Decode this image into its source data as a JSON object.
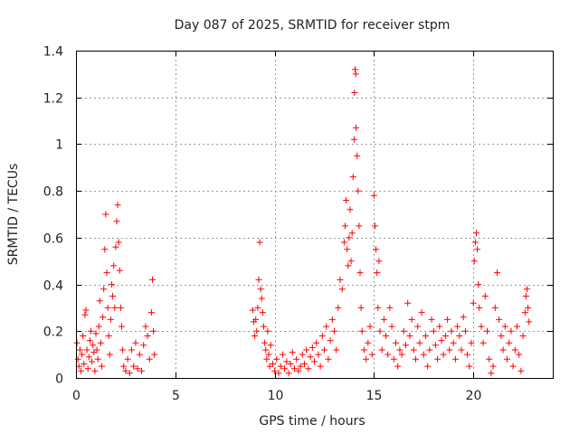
{
  "chart_data": {
    "type": "scatter",
    "title": "Day 087 of 2025, SRMTID for receiver stpm",
    "xlabel": "GPS time / hours",
    "ylabel": "SRMTID / TECUs",
    "xlim": [
      0,
      24
    ],
    "ylim": [
      0,
      1.4
    ],
    "xticks": [
      0,
      5,
      10,
      15,
      20
    ],
    "xtick_labels": [
      "0",
      "5",
      "10",
      "15",
      "20"
    ],
    "yticks": [
      0,
      0.2,
      0.4,
      0.6,
      0.8,
      1.0,
      1.2,
      1.4
    ],
    "ytick_labels": [
      "0",
      "0.2",
      "0.4",
      "0.6",
      "0.8",
      "1",
      "1.2",
      "1.4"
    ],
    "grid": true,
    "marker": "+",
    "color": "#ff0000",
    "series": [
      {
        "name": "SRMTID",
        "points": [
          [
            0.05,
            0.15
          ],
          [
            0.1,
            0.08
          ],
          [
            0.15,
            0.05
          ],
          [
            0.2,
            0.12
          ],
          [
            0.25,
            0.03
          ],
          [
            0.3,
            0.1
          ],
          [
            0.35,
            0.18
          ],
          [
            0.4,
            0.06
          ],
          [
            0.45,
            0.27
          ],
          [
            0.5,
            0.29
          ],
          [
            0.55,
            0.12
          ],
          [
            0.6,
            0.04
          ],
          [
            0.65,
            0.09
          ],
          [
            0.7,
            0.16
          ],
          [
            0.75,
            0.2
          ],
          [
            0.8,
            0.07
          ],
          [
            0.85,
            0.14
          ],
          [
            0.9,
            0.11
          ],
          [
            0.95,
            0.03
          ],
          [
            1.0,
            0.19
          ],
          [
            1.05,
            0.12
          ],
          [
            1.1,
            0.08
          ],
          [
            1.15,
            0.22
          ],
          [
            1.2,
            0.33
          ],
          [
            1.25,
            0.15
          ],
          [
            1.3,
            0.05
          ],
          [
            1.35,
            0.26
          ],
          [
            1.4,
            0.38
          ],
          [
            1.45,
            0.55
          ],
          [
            1.5,
            0.7
          ],
          [
            1.55,
            0.45
          ],
          [
            1.6,
            0.3
          ],
          [
            1.65,
            0.18
          ],
          [
            1.7,
            0.1
          ],
          [
            1.75,
            0.25
          ],
          [
            1.8,
            0.4
          ],
          [
            1.85,
            0.35
          ],
          [
            1.9,
            0.48
          ],
          [
            1.95,
            0.3
          ],
          [
            2.0,
            0.56
          ],
          [
            2.05,
            0.67
          ],
          [
            2.1,
            0.74
          ],
          [
            2.15,
            0.58
          ],
          [
            2.2,
            0.46
          ],
          [
            2.25,
            0.3
          ],
          [
            2.3,
            0.22
          ],
          [
            2.35,
            0.12
          ],
          [
            2.4,
            0.05
          ],
          [
            2.5,
            0.03
          ],
          [
            2.6,
            0.08
          ],
          [
            2.7,
            0.02
          ],
          [
            2.8,
            0.12
          ],
          [
            2.9,
            0.05
          ],
          [
            3.0,
            0.15
          ],
          [
            3.1,
            0.04
          ],
          [
            3.2,
            0.1
          ],
          [
            3.3,
            0.03
          ],
          [
            3.4,
            0.14
          ],
          [
            3.5,
            0.22
          ],
          [
            3.6,
            0.18
          ],
          [
            3.7,
            0.08
          ],
          [
            3.8,
            0.28
          ],
          [
            3.85,
            0.42
          ],
          [
            3.9,
            0.2
          ],
          [
            3.95,
            0.1
          ],
          [
            8.9,
            0.29
          ],
          [
            8.95,
            0.24
          ],
          [
            9.0,
            0.18
          ],
          [
            9.05,
            0.25
          ],
          [
            9.1,
            0.2
          ],
          [
            9.15,
            0.3
          ],
          [
            9.2,
            0.42
          ],
          [
            9.25,
            0.58
          ],
          [
            9.3,
            0.38
          ],
          [
            9.35,
            0.34
          ],
          [
            9.4,
            0.28
          ],
          [
            9.45,
            0.22
          ],
          [
            9.5,
            0.15
          ],
          [
            9.55,
            0.12
          ],
          [
            9.6,
            0.08
          ],
          [
            9.65,
            0.2
          ],
          [
            9.7,
            0.1
          ],
          [
            9.75,
            0.05
          ],
          [
            9.8,
            0.14
          ],
          [
            9.9,
            0.06
          ],
          [
            10.0,
            0.03
          ],
          [
            10.1,
            0.08
          ],
          [
            10.2,
            0.02
          ],
          [
            10.3,
            0.05
          ],
          [
            10.4,
            0.1
          ],
          [
            10.5,
            0.04
          ],
          [
            10.6,
            0.07
          ],
          [
            10.7,
            0.02
          ],
          [
            10.8,
            0.06
          ],
          [
            10.9,
            0.11
          ],
          [
            11.0,
            0.04
          ],
          [
            11.1,
            0.08
          ],
          [
            11.2,
            0.03
          ],
          [
            11.3,
            0.05
          ],
          [
            11.4,
            0.1
          ],
          [
            11.5,
            0.06
          ],
          [
            11.6,
            0.12
          ],
          [
            11.7,
            0.04
          ],
          [
            11.8,
            0.09
          ],
          [
            11.9,
            0.13
          ],
          [
            12.0,
            0.07
          ],
          [
            12.1,
            0.15
          ],
          [
            12.2,
            0.1
          ],
          [
            12.3,
            0.05
          ],
          [
            12.4,
            0.18
          ],
          [
            12.5,
            0.12
          ],
          [
            12.6,
            0.22
          ],
          [
            12.7,
            0.08
          ],
          [
            12.8,
            0.16
          ],
          [
            12.9,
            0.25
          ],
          [
            13.0,
            0.2
          ],
          [
            13.1,
            0.12
          ],
          [
            13.2,
            0.3
          ],
          [
            13.3,
            0.42
          ],
          [
            13.4,
            0.38
          ],
          [
            13.5,
            0.58
          ],
          [
            13.55,
            0.65
          ],
          [
            13.6,
            0.76
          ],
          [
            13.65,
            0.55
          ],
          [
            13.7,
            0.48
          ],
          [
            13.75,
            0.6
          ],
          [
            13.8,
            0.72
          ],
          [
            13.85,
            0.5
          ],
          [
            13.9,
            0.62
          ],
          [
            13.95,
            0.86
          ],
          [
            14.0,
            1.02
          ],
          [
            14.02,
            1.22
          ],
          [
            14.05,
            1.32
          ],
          [
            14.08,
            1.3
          ],
          [
            14.1,
            1.07
          ],
          [
            14.15,
            0.95
          ],
          [
            14.2,
            0.8
          ],
          [
            14.25,
            0.65
          ],
          [
            14.3,
            0.45
          ],
          [
            14.35,
            0.3
          ],
          [
            14.4,
            0.2
          ],
          [
            14.5,
            0.12
          ],
          [
            14.6,
            0.08
          ],
          [
            14.7,
            0.15
          ],
          [
            14.8,
            0.22
          ],
          [
            14.9,
            0.1
          ],
          [
            15.0,
            0.78
          ],
          [
            15.05,
            0.65
          ],
          [
            15.1,
            0.55
          ],
          [
            15.15,
            0.45
          ],
          [
            15.2,
            0.3
          ],
          [
            15.25,
            0.5
          ],
          [
            15.3,
            0.2
          ],
          [
            15.4,
            0.12
          ],
          [
            15.5,
            0.25
          ],
          [
            15.6,
            0.18
          ],
          [
            15.7,
            0.1
          ],
          [
            15.8,
            0.3
          ],
          [
            15.9,
            0.22
          ],
          [
            16.0,
            0.08
          ],
          [
            16.1,
            0.15
          ],
          [
            16.2,
            0.05
          ],
          [
            16.3,
            0.12
          ],
          [
            16.4,
            0.1
          ],
          [
            16.5,
            0.2
          ],
          [
            16.6,
            0.14
          ],
          [
            16.7,
            0.32
          ],
          [
            16.8,
            0.18
          ],
          [
            16.9,
            0.25
          ],
          [
            17.0,
            0.12
          ],
          [
            17.1,
            0.08
          ],
          [
            17.2,
            0.22
          ],
          [
            17.3,
            0.15
          ],
          [
            17.4,
            0.28
          ],
          [
            17.5,
            0.1
          ],
          [
            17.6,
            0.18
          ],
          [
            17.7,
            0.05
          ],
          [
            17.8,
            0.12
          ],
          [
            17.9,
            0.25
          ],
          [
            18.0,
            0.2
          ],
          [
            18.1,
            0.14
          ],
          [
            18.2,
            0.08
          ],
          [
            18.3,
            0.22
          ],
          [
            18.4,
            0.16
          ],
          [
            18.5,
            0.1
          ],
          [
            18.6,
            0.18
          ],
          [
            18.7,
            0.25
          ],
          [
            18.8,
            0.12
          ],
          [
            18.9,
            0.2
          ],
          [
            19.0,
            0.15
          ],
          [
            19.1,
            0.08
          ],
          [
            19.2,
            0.22
          ],
          [
            19.3,
            0.18
          ],
          [
            19.4,
            0.12
          ],
          [
            19.5,
            0.26
          ],
          [
            19.6,
            0.2
          ],
          [
            19.7,
            0.1
          ],
          [
            19.8,
            0.05
          ],
          [
            19.9,
            0.15
          ],
          [
            20.0,
            0.32
          ],
          [
            20.05,
            0.5
          ],
          [
            20.1,
            0.58
          ],
          [
            20.15,
            0.62
          ],
          [
            20.2,
            0.55
          ],
          [
            20.25,
            0.4
          ],
          [
            20.3,
            0.3
          ],
          [
            20.4,
            0.22
          ],
          [
            20.5,
            0.15
          ],
          [
            20.6,
            0.35
          ],
          [
            20.7,
            0.2
          ],
          [
            20.8,
            0.08
          ],
          [
            20.9,
            0.02
          ],
          [
            21.0,
            0.05
          ],
          [
            21.1,
            0.3
          ],
          [
            21.2,
            0.45
          ],
          [
            21.3,
            0.25
          ],
          [
            21.4,
            0.18
          ],
          [
            21.5,
            0.12
          ],
          [
            21.6,
            0.22
          ],
          [
            21.7,
            0.08
          ],
          [
            21.8,
            0.15
          ],
          [
            21.9,
            0.2
          ],
          [
            22.0,
            0.05
          ],
          [
            22.1,
            0.12
          ],
          [
            22.2,
            0.22
          ],
          [
            22.3,
            0.1
          ],
          [
            22.4,
            0.03
          ],
          [
            22.5,
            0.18
          ],
          [
            22.6,
            0.28
          ],
          [
            22.65,
            0.35
          ],
          [
            22.7,
            0.38
          ],
          [
            22.75,
            0.3
          ],
          [
            22.8,
            0.24
          ]
        ]
      }
    ]
  }
}
